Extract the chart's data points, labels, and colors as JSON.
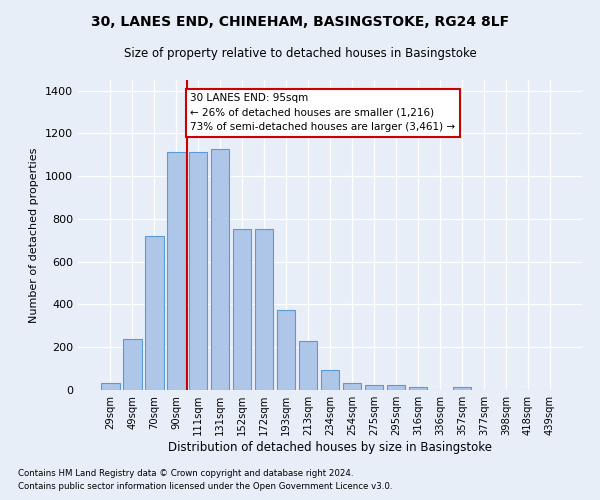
{
  "title": "30, LANES END, CHINEHAM, BASINGSTOKE, RG24 8LF",
  "subtitle": "Size of property relative to detached houses in Basingstoke",
  "xlabel": "Distribution of detached houses by size in Basingstoke",
  "ylabel": "Number of detached properties",
  "footnote1": "Contains HM Land Registry data © Crown copyright and database right 2024.",
  "footnote2": "Contains public sector information licensed under the Open Government Licence v3.0.",
  "categories": [
    "29sqm",
    "49sqm",
    "70sqm",
    "90sqm",
    "111sqm",
    "131sqm",
    "152sqm",
    "172sqm",
    "193sqm",
    "213sqm",
    "234sqm",
    "254sqm",
    "275sqm",
    "295sqm",
    "316sqm",
    "336sqm",
    "357sqm",
    "377sqm",
    "398sqm",
    "418sqm",
    "439sqm"
  ],
  "values": [
    35,
    240,
    720,
    1115,
    1115,
    1125,
    755,
    755,
    375,
    228,
    95,
    35,
    25,
    22,
    12,
    0,
    12,
    0,
    0,
    0,
    0
  ],
  "bar_color": "#aec6e8",
  "bar_edge_color": "#5b9bd5",
  "background_color": "#e8eef7",
  "grid_color": "#ffffff",
  "vline_x": 3.5,
  "vline_color": "#cc0000",
  "annotation_text": "30 LANES END: 95sqm\n← 26% of detached houses are smaller (1,216)\n73% of semi-detached houses are larger (3,461) →",
  "annotation_box_facecolor": "#ffffff",
  "annotation_box_edgecolor": "#cc0000",
  "ylim": [
    0,
    1450
  ],
  "yticks": [
    0,
    200,
    400,
    600,
    800,
    1000,
    1200,
    1400
  ]
}
